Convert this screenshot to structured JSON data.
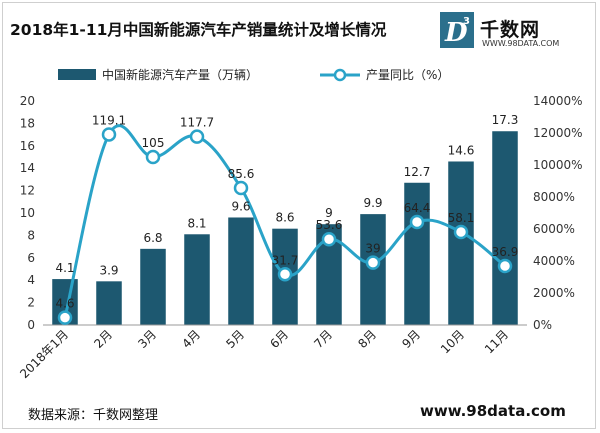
{
  "title": "2018年1-11月中国新能源汽车产销量统计及增长情况",
  "logo": {
    "text": "千数网",
    "url": "WWW.98DATA.COM",
    "mark": "D",
    "mark_sup": "3"
  },
  "source_text": "数据来源：千数网整理",
  "footer_url": "www.98data.com",
  "colors": {
    "bar": "#1d5870",
    "line": "#2aa3c8",
    "axis": "#666666",
    "grid": "#e6e6e6"
  },
  "chart_data": {
    "type": "bar",
    "categories": [
      "2018年1月",
      "2月",
      "3月",
      "4月",
      "5月",
      "6月",
      "7月",
      "8月",
      "9月",
      "10月",
      "11月"
    ],
    "series": [
      {
        "name": "中国新能源汽车产量（万辆）",
        "type": "bar",
        "axis": "left",
        "values": [
          4.1,
          3.9,
          6.8,
          8.1,
          9.6,
          8.6,
          9,
          9.9,
          12.7,
          14.6,
          17.3
        ]
      },
      {
        "name": "产量同比（%）",
        "type": "line",
        "axis": "right",
        "values": [
          4.6,
          119.1,
          105,
          117.7,
          85.6,
          31.7,
          53.6,
          39,
          64.4,
          58.1,
          36.9
        ]
      }
    ],
    "y_left": {
      "min": 0,
      "max": 20,
      "ticks": [
        "0",
        "2",
        "4",
        "6",
        "8",
        "10",
        "12",
        "14",
        "16",
        "18",
        "20"
      ]
    },
    "y_right": {
      "min": 0,
      "max": 14000,
      "ticks": [
        "0%",
        "2000%",
        "4000%",
        "6000%",
        "8000%",
        "10000%",
        "12000%",
        "14000%"
      ]
    },
    "legend": "top",
    "grid": false
  }
}
